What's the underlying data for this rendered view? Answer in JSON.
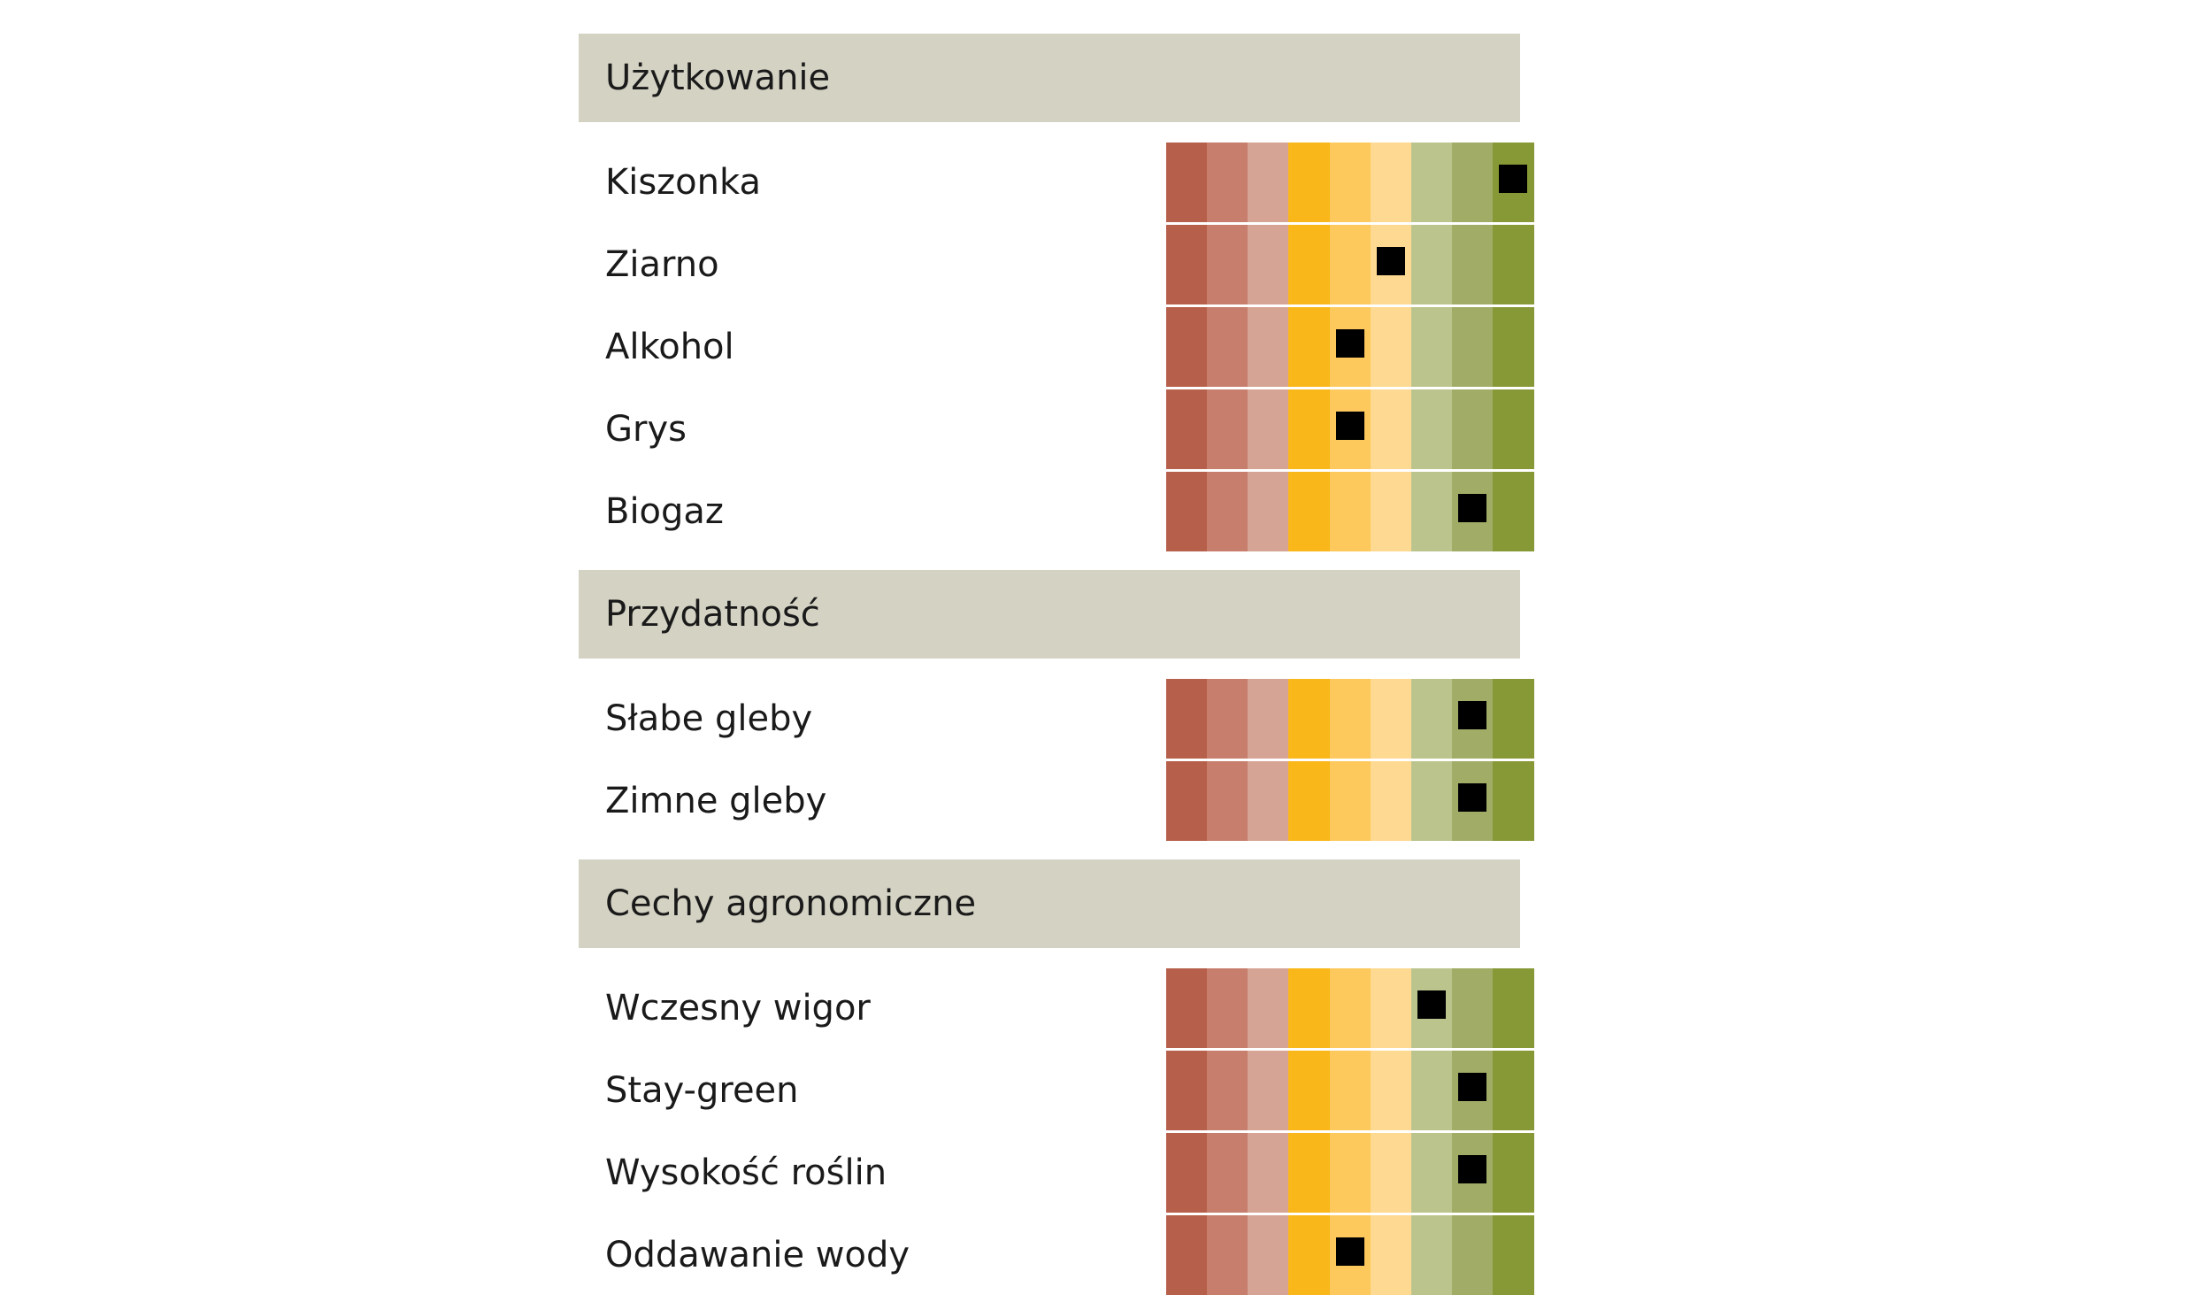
{
  "chart_data": {
    "type": "table",
    "scale_levels": 9,
    "scale_colors": [
      "#b65f4b",
      "#c87e6c",
      "#d6a494",
      "#f9b719",
      "#fdc95c",
      "#fed991",
      "#bcc48d",
      "#a1ac66",
      "#879936"
    ],
    "marker_color": "#000000",
    "sections": [
      {
        "title": "Użytkowanie",
        "rows": [
          {
            "label": "Kiszonka",
            "value": 9
          },
          {
            "label": "Ziarno",
            "value": 6
          },
          {
            "label": "Alkohol",
            "value": 5
          },
          {
            "label": "Grys",
            "value": 5
          },
          {
            "label": "Biogaz",
            "value": 8
          }
        ]
      },
      {
        "title": "Przydatność",
        "rows": [
          {
            "label": "Słabe gleby",
            "value": 8
          },
          {
            "label": "Zimne gleby",
            "value": 8
          }
        ]
      },
      {
        "title": "Cechy agronomiczne",
        "rows": [
          {
            "label": "Wczesny wigor",
            "value": 7
          },
          {
            "label": "Stay-green",
            "value": 8
          },
          {
            "label": "Wysokość roślin",
            "value": 8
          },
          {
            "label": "Oddawanie wody",
            "value": 5
          }
        ]
      }
    ]
  }
}
